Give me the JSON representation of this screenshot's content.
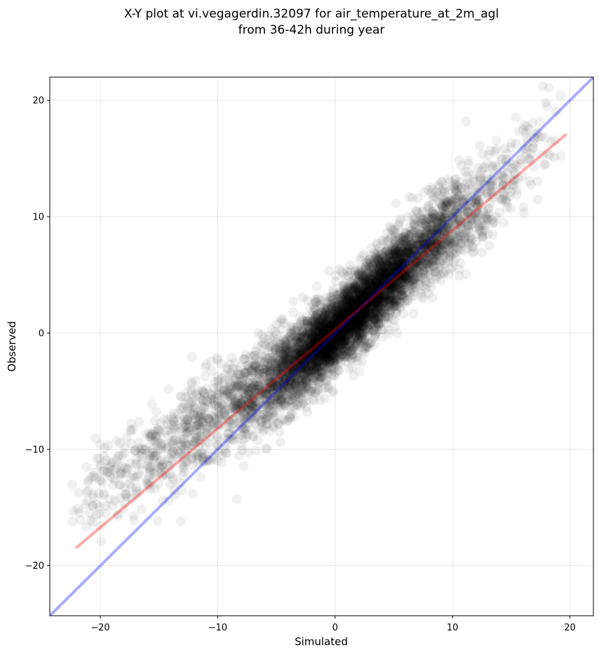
{
  "chart_data": {
    "type": "scatter",
    "title": "X-Y plot at vi.vegagerdin.32097 for air_temperature_at_2m_agl",
    "subtitle": "from 36-42h during year",
    "xlabel": "Simulated",
    "ylabel": "Observed",
    "xlim": [
      -24.3,
      22.0
    ],
    "ylim": [
      -24.3,
      22.0
    ],
    "xticks": [
      -20,
      -10,
      0,
      10,
      20
    ],
    "yticks": [
      -20,
      -10,
      0,
      10,
      20
    ],
    "xtick_labels": [
      "−20",
      "−10",
      "0",
      "10",
      "20"
    ],
    "ytick_labels": [
      "−20",
      "−10",
      "0",
      "10",
      "20"
    ],
    "grid": true,
    "point_color": "#000000",
    "point_opacity": 0.06,
    "identity_line": {
      "color": "#0000ff",
      "opacity": 0.33,
      "points": [
        [
          -24.3,
          -24.3
        ],
        [
          22.0,
          22.0
        ]
      ]
    },
    "regression_line": {
      "color": "#ff0000",
      "opacity": 0.33,
      "points": [
        [
          -22.1,
          -18.5
        ],
        [
          19.7,
          17.1
        ]
      ]
    },
    "point_clusters": [
      {
        "x_center": -19.5,
        "y_center": -12.8,
        "x_spread": 1.4,
        "y_spread": 1.8,
        "count": 90
      },
      {
        "x_center": -15.5,
        "y_center": -10.3,
        "x_spread": 1.6,
        "y_spread": 1.9,
        "count": 160
      },
      {
        "x_center": -11.5,
        "y_center": -8.0,
        "x_spread": 1.6,
        "y_spread": 2.0,
        "count": 260
      },
      {
        "x_center": -7.5,
        "y_center": -5.5,
        "x_spread": 1.5,
        "y_spread": 2.0,
        "count": 420
      },
      {
        "x_center": -4.0,
        "y_center": -3.2,
        "x_spread": 1.4,
        "y_spread": 1.8,
        "count": 700
      },
      {
        "x_center": -1.0,
        "y_center": -0.8,
        "x_spread": 1.3,
        "y_spread": 1.6,
        "count": 1400
      },
      {
        "x_center": 2.0,
        "y_center": 2.0,
        "x_spread": 1.3,
        "y_spread": 1.6,
        "count": 1500
      },
      {
        "x_center": 5.0,
        "y_center": 5.0,
        "x_spread": 1.3,
        "y_spread": 1.6,
        "count": 1100
      },
      {
        "x_center": 8.5,
        "y_center": 8.2,
        "x_spread": 1.4,
        "y_spread": 1.8,
        "count": 650
      },
      {
        "x_center": 12.5,
        "y_center": 11.3,
        "x_spread": 1.5,
        "y_spread": 2.0,
        "count": 230
      },
      {
        "x_center": 16.5,
        "y_center": 15.5,
        "x_spread": 1.4,
        "y_spread": 2.0,
        "count": 70
      }
    ]
  }
}
